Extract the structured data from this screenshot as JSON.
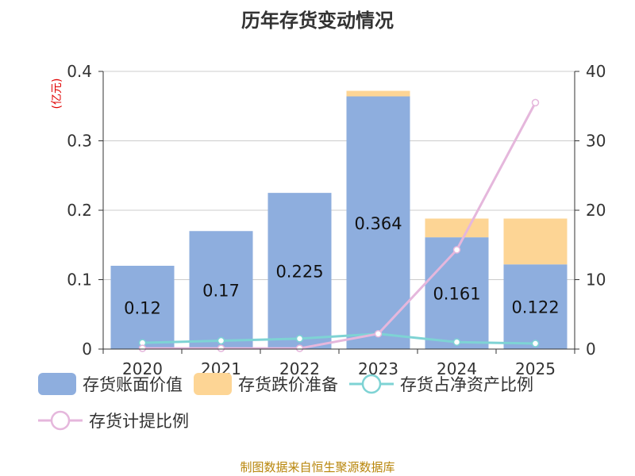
{
  "title": "历年存货变动情况",
  "left_unit": "(亿元)",
  "footer": "制图数据来自恒生聚源数据库",
  "colors": {
    "book_value": "#8eaede",
    "impairment": "#fdd595",
    "ratio_net_assets": "#7ed3d4",
    "provision_ratio": "#e5b7dc",
    "grid": "#cccccc",
    "axis": "#333333",
    "unit": "#e00000",
    "footer": "#b8860b"
  },
  "chart_data": {
    "type": "bar",
    "categories": [
      "2020",
      "2021",
      "2022",
      "2023",
      "2024",
      "2025"
    ],
    "y_left": {
      "ticks": [
        "0",
        "0.1",
        "0.2",
        "0.3",
        "0.4"
      ],
      "ylim": [
        0,
        0.4
      ]
    },
    "y_right": {
      "ticks": [
        "0",
        "10",
        "20",
        "30",
        "40"
      ],
      "ylim": [
        0,
        40
      ]
    },
    "bars": [
      {
        "name": "存货账面价值",
        "values": [
          0.12,
          0.17,
          0.225,
          0.364,
          0.161,
          0.122
        ],
        "labels": [
          "0.12",
          "0.17",
          "0.225",
          "0.364",
          "0.161",
          "0.122"
        ]
      },
      {
        "name": "存货跌价准备",
        "values": [
          0.0,
          0.0,
          0.0,
          0.008,
          0.027,
          0.066
        ]
      }
    ],
    "lines": [
      {
        "name": "存货占净资产比例",
        "axis": "right",
        "values": [
          0.9,
          1.2,
          1.5,
          2.2,
          1.0,
          0.8
        ]
      },
      {
        "name": "存货计提比例",
        "axis": "right",
        "values": [
          0.1,
          0.1,
          0.1,
          2.2,
          14.3,
          35.5
        ]
      }
    ],
    "grid": true,
    "legend_position": "bottom"
  },
  "legend": [
    {
      "label": "存货账面价值",
      "kind": "rect",
      "color_key": "book_value"
    },
    {
      "label": "存货跌价准备",
      "kind": "rect",
      "color_key": "impairment"
    },
    {
      "label": "存货占净资产比例",
      "kind": "line",
      "color_key": "ratio_net_assets"
    },
    {
      "label": "存货计提比例",
      "kind": "line",
      "color_key": "provision_ratio"
    }
  ]
}
